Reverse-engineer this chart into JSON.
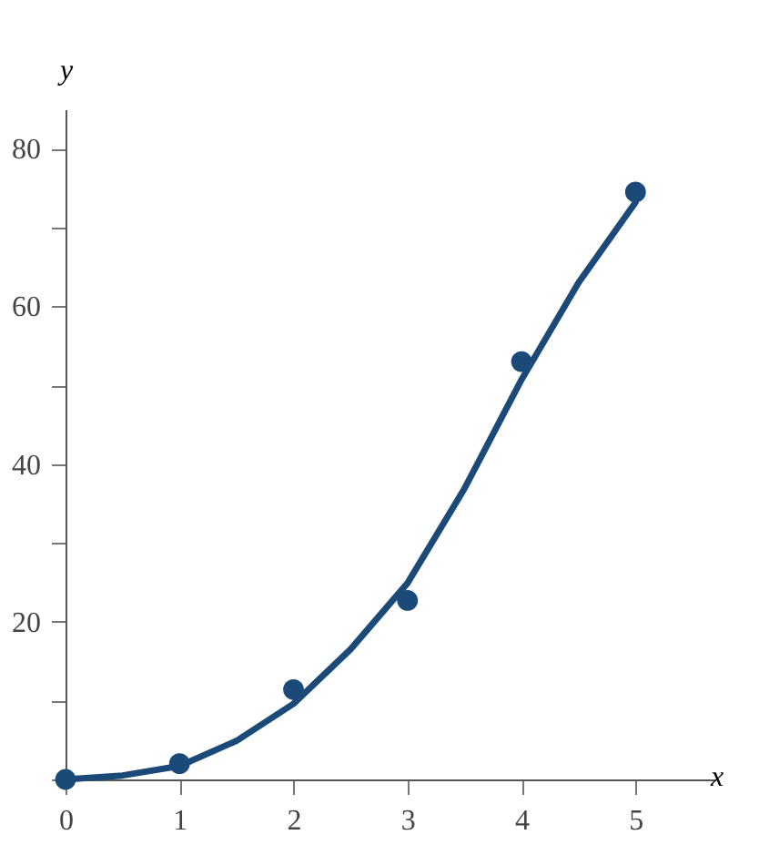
{
  "chart_data": {
    "type": "scatter",
    "xlabel": "x",
    "ylabel": "y",
    "xlim": [
      0,
      5.7
    ],
    "ylim": [
      0,
      85
    ],
    "xticks": [
      0,
      1,
      2,
      3,
      4,
      5
    ],
    "yticks": [
      {
        "value": 0,
        "label": null
      },
      {
        "value": 10,
        "label": null
      },
      20,
      {
        "value": 30,
        "label": null
      },
      40,
      {
        "value": 50,
        "label": null
      },
      60,
      {
        "value": 70,
        "label": null
      },
      80
    ],
    "grid": false,
    "marker": "circle",
    "series": [
      {
        "color": "#1b4a78",
        "x": [
          0,
          1,
          2,
          3,
          4,
          5
        ],
        "values": [
          0,
          2,
          11.4,
          22.7,
          53,
          74.5
        ]
      },
      {
        "type": "line",
        "color": "#1b4a78",
        "line_style": "solid",
        "marker": "none",
        "x": [
          0,
          0.5,
          1,
          1.5,
          2,
          2.5,
          3,
          3.5,
          4,
          4.5,
          5
        ],
        "values": [
          0,
          0.5,
          1.7,
          4.9,
          9.6,
          16.5,
          24.9,
          36.9,
          50.7,
          63,
          73.2
        ]
      }
    ]
  }
}
